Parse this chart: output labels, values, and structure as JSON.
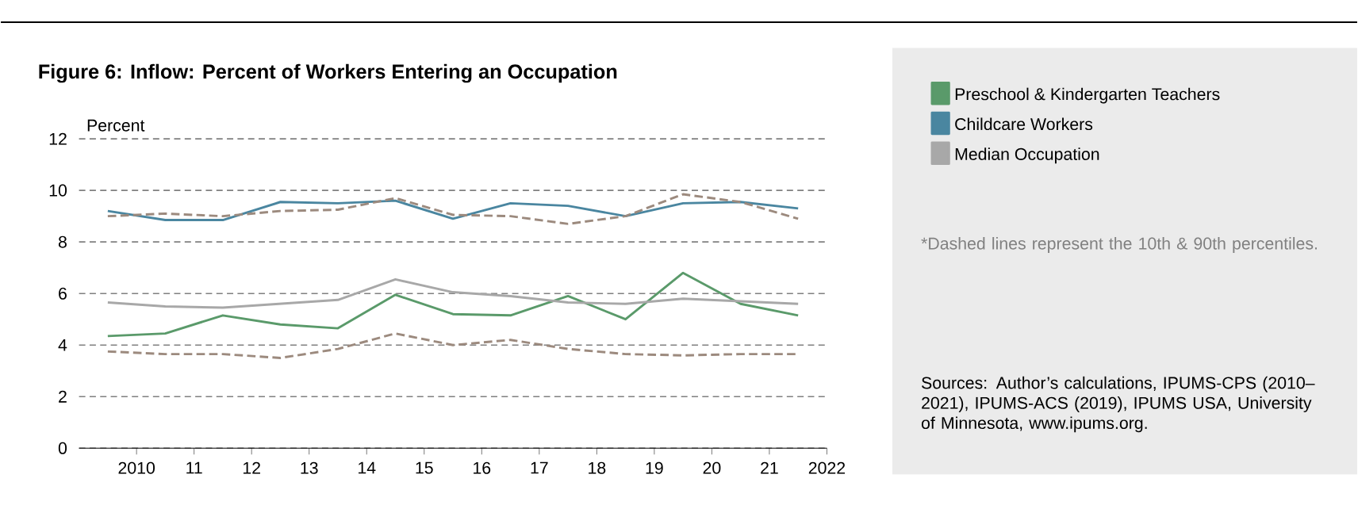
{
  "chart_data": {
    "type": "line",
    "title": "Figure 6: Inflow: Percent of Workers Entering an Occupation",
    "ylabel": "Percent",
    "x": [
      2009.5,
      2010.5,
      2011.5,
      2012.5,
      2013.5,
      2014.5,
      2015.5,
      2016.5,
      2017.5,
      2018.5,
      2019.5,
      2020.5,
      2021.5
    ],
    "series": [
      {
        "name": "Preschool & Kindergarten Teachers",
        "color": "#5a9a6a",
        "values": [
          4.35,
          4.45,
          5.15,
          4.8,
          4.65,
          5.95,
          5.2,
          5.15,
          5.9,
          5.0,
          6.8,
          5.6,
          5.15
        ]
      },
      {
        "name": "Childcare Workers",
        "color": "#4a86a0",
        "values": [
          9.2,
          8.85,
          8.85,
          9.55,
          9.5,
          9.6,
          8.9,
          9.5,
          9.4,
          9.0,
          9.5,
          9.55,
          9.3
        ]
      },
      {
        "name": "Median Occupation",
        "color": "#a8a8a8",
        "values": [
          5.65,
          5.5,
          5.45,
          5.6,
          5.75,
          6.55,
          6.05,
          5.9,
          5.65,
          5.6,
          5.8,
          5.7,
          5.6
        ]
      },
      {
        "color": "#9c8a7e",
        "line_style": "dashed",
        "values": [
          9.0,
          9.1,
          9.0,
          9.2,
          9.25,
          9.7,
          9.05,
          9.0,
          8.7,
          9.0,
          9.85,
          9.55,
          8.9
        ]
      },
      {
        "color": "#9c8a7e",
        "line_style": "dashed",
        "values": [
          3.75,
          3.65,
          3.65,
          3.5,
          3.85,
          4.45,
          4.0,
          4.2,
          3.85,
          3.65,
          3.6,
          3.65,
          3.65
        ]
      }
    ],
    "xlim": [
      2009,
      2022
    ],
    "xticks": [
      2010,
      {
        "value": 2011,
        "label": "11"
      },
      {
        "value": 2012,
        "label": "12"
      },
      {
        "value": 2013,
        "label": "13"
      },
      {
        "value": 2014,
        "label": "14"
      },
      {
        "value": 2015,
        "label": "15"
      },
      {
        "value": 2016,
        "label": "16"
      },
      {
        "value": 2017,
        "label": "17"
      },
      {
        "value": 2018,
        "label": "18"
      },
      {
        "value": 2019,
        "label": "19"
      },
      {
        "value": 2020,
        "label": "20"
      },
      {
        "value": 2021,
        "label": "21"
      },
      2022
    ],
    "ylim": [
      0,
      12
    ],
    "yticks": [
      0,
      2,
      4,
      6,
      8,
      10,
      12
    ],
    "grid": "y",
    "legend": "right",
    "annotations": [
      "*Dashed lines represent the 10th & 90th percentiles.",
      "Sources: Author’s calculations, IPUMS-CPS (2010–2021), IPUMS-ACS (2019), IPUMS USA, University of Minnesota, www.ipums.org."
    ]
  }
}
